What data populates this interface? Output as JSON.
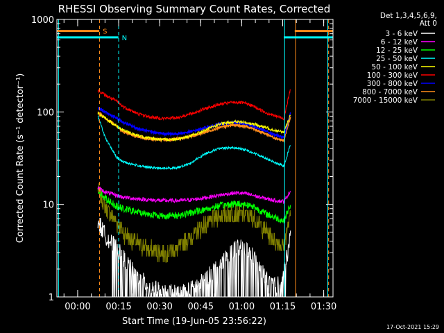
{
  "chart_data": {
    "type": "line",
    "title": "RHESSI Observing Summary Count Rates, Corrected",
    "xlabel": "Start Time (19-Jun-05 23:56:22)",
    "ylabel": "Corrected Count Rate (s⁻¹ detector⁻¹)",
    "x_unit": "minutes since start",
    "xlim": [
      -4,
      97
    ],
    "ylim": [
      1,
      1000
    ],
    "yscale": "log",
    "x_ticks": [
      {
        "value": 3.6,
        "label": "00:00"
      },
      {
        "value": 18.6,
        "label": "00:15"
      },
      {
        "value": 33.6,
        "label": "00:30"
      },
      {
        "value": 48.6,
        "label": "00:45"
      },
      {
        "value": 63.6,
        "label": "01:00"
      },
      {
        "value": 78.6,
        "label": "01:15"
      },
      {
        "value": 93.6,
        "label": "01:30"
      }
    ],
    "y_ticks": [
      {
        "value": 1,
        "label": "1"
      },
      {
        "value": 10,
        "label": "10"
      },
      {
        "value": 100,
        "label": "100"
      },
      {
        "value": 1000,
        "label": "1000"
      }
    ],
    "legend_header": [
      "Det 1,3,4,5,6,9,",
      "Att 0"
    ],
    "legend_placement": "right, outside plot",
    "series": [
      {
        "name": "3 - 6 keV",
        "color": "#ffffff",
        "x": [
          11,
          14,
          18,
          20,
          25,
          30,
          35,
          40,
          45,
          50,
          55,
          60,
          62,
          65,
          68,
          70,
          73,
          76,
          79,
          81.5
        ],
        "values": [
          6.5,
          4.5,
          3.3,
          2.7,
          1.7,
          1.3,
          1.1,
          1.1,
          1.2,
          1.5,
          2.2,
          3.2,
          3.4,
          3.3,
          2.7,
          2.0,
          1.6,
          1.3,
          1.8,
          4.5
        ]
      },
      {
        "name": "6 - 12 keV",
        "color": "#ff00ff",
        "x": [
          11,
          14,
          18,
          20,
          25,
          30,
          35,
          40,
          45,
          50,
          55,
          60,
          62,
          65,
          68,
          70,
          73,
          76,
          79,
          81.5
        ],
        "values": [
          15,
          13.5,
          12.5,
          12,
          11.5,
          11.2,
          11,
          11,
          11.2,
          11.8,
          12.5,
          13.2,
          13.3,
          13.1,
          12.5,
          12,
          11.5,
          11,
          10.8,
          14
        ]
      },
      {
        "name": "12 - 25 keV",
        "color": "#00ff00",
        "x": [
          11,
          14,
          18,
          20,
          25,
          30,
          35,
          40,
          45,
          50,
          55,
          60,
          62,
          65,
          68,
          70,
          73,
          76,
          79,
          81.5
        ],
        "values": [
          14,
          11.5,
          9.5,
          9,
          8.3,
          7.8,
          7.5,
          7.6,
          8.1,
          8.8,
          9.6,
          10.1,
          10.2,
          10,
          9.5,
          8.7,
          7.8,
          7.2,
          6.6,
          10
        ]
      },
      {
        "name": "25 - 50 keV",
        "color": "#00ffff",
        "x": [
          11,
          14,
          18,
          20,
          25,
          30,
          35,
          40,
          45,
          50,
          55,
          60,
          62,
          65,
          68,
          70,
          73,
          76,
          79,
          81.5
        ],
        "values": [
          90,
          50,
          32,
          29,
          26.5,
          25,
          24.5,
          25,
          28,
          35,
          40,
          41,
          40.5,
          39,
          36,
          34,
          31,
          28,
          26,
          45
        ]
      },
      {
        "name": "50 - 100 keV",
        "color": "#ffff00",
        "x": [
          11,
          14,
          18,
          20,
          25,
          30,
          35,
          40,
          45,
          50,
          55,
          60,
          62,
          65,
          68,
          70,
          73,
          76,
          79,
          81.5
        ],
        "values": [
          96,
          84,
          70,
          64,
          56,
          52,
          50,
          51,
          55,
          63,
          73,
          78,
          78,
          77,
          74,
          71,
          67,
          63,
          60,
          95
        ]
      },
      {
        "name": "100 - 300 keV",
        "color": "#ff0000",
        "x": [
          11,
          14,
          18,
          20,
          25,
          30,
          35,
          40,
          45,
          50,
          55,
          60,
          62,
          65,
          68,
          70,
          73,
          76,
          79,
          81.5
        ],
        "values": [
          170,
          150,
          130,
          115,
          97,
          88,
          85,
          87,
          95,
          108,
          120,
          127,
          127,
          124,
          115,
          107,
          97,
          90,
          85,
          180
        ]
      },
      {
        "name": "300 - 800 keV",
        "color": "#0000ff",
        "x": [
          11,
          14,
          18,
          20,
          25,
          30,
          35,
          40,
          45,
          50,
          55,
          60,
          62,
          65,
          68,
          70,
          73,
          76,
          79,
          81.5
        ],
        "values": [
          110,
          98,
          85,
          78,
          67,
          61,
          58,
          58,
          61,
          67,
          73,
          77,
          77,
          75,
          70,
          66,
          61,
          56,
          53,
          100
        ]
      },
      {
        "name": "800 - 7000 keV",
        "color": "#ff8c1a",
        "x": [
          11,
          14,
          18,
          20,
          25,
          30,
          35,
          40,
          45,
          50,
          55,
          60,
          62,
          65,
          68,
          70,
          73,
          76,
          79,
          81.5
        ],
        "values": [
          100,
          85,
          70,
          62,
          54,
          51,
          50,
          51,
          54,
          60,
          67,
          72,
          72,
          70,
          66,
          62,
          57,
          52,
          49,
          90
        ]
      },
      {
        "name": "7000 - 15000 keV",
        "color": "#808000",
        "x": [
          11,
          14,
          18,
          20,
          25,
          30,
          35,
          40,
          45,
          50,
          55,
          60,
          62,
          65,
          68,
          70,
          73,
          76,
          79,
          81.5
        ],
        "values": [
          14.5,
          9,
          6.3,
          5,
          3.8,
          3.2,
          3,
          3.3,
          4.5,
          6,
          7.5,
          8,
          8,
          7.8,
          7,
          6,
          5,
          4,
          3.5,
          8
        ]
      }
    ],
    "flags": [
      {
        "label": "S",
        "color": "#ff8c1a",
        "y": 750,
        "segments": [
          [
            -4,
            11.5
          ],
          [
            83,
            97
          ]
        ]
      },
      {
        "label": "N",
        "color": "#00ffff",
        "y": 640,
        "segments": [
          [
            -4,
            18.5
          ],
          [
            79,
            97
          ]
        ]
      }
    ],
    "markers": [
      {
        "x": -3.4,
        "color": "#00ffff",
        "style": "solid"
      },
      {
        "x": 11.6,
        "color": "#ff8c1a",
        "style": "dashed"
      },
      {
        "x": 18.6,
        "color": "#00ffff",
        "style": "dashed"
      },
      {
        "x": 79.3,
        "color": "#00ffff",
        "style": "solid"
      },
      {
        "x": 83.3,
        "color": "#ff8c1a",
        "style": "solid"
      },
      {
        "x": 95.1,
        "color": "#00ffff",
        "style": "solid"
      },
      {
        "x": 95.4,
        "color": "#ff8c1a",
        "style": "dashed"
      }
    ]
  },
  "footer": {
    "timestamp": "17-Oct-2021 15:29"
  }
}
